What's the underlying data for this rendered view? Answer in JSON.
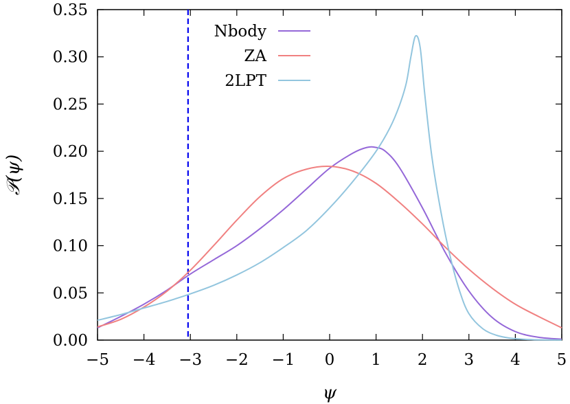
{
  "chart_data": {
    "type": "line",
    "xlabel": "ψ",
    "ylabel": "𝒫(ψ)",
    "xlim": [
      -5,
      5
    ],
    "ylim": [
      0,
      0.35
    ],
    "x_ticks": [
      -5,
      -4,
      -3,
      -2,
      -1,
      0,
      1,
      2,
      3,
      4,
      5
    ],
    "x_tick_labels": [
      "−5",
      "−4",
      "−3",
      "−2",
      "−1",
      "0",
      "1",
      "2",
      "3",
      "4",
      "5"
    ],
    "y_ticks": [
      0,
      0.05,
      0.1,
      0.15,
      0.2,
      0.25,
      0.3,
      0.35
    ],
    "y_tick_labels": [
      "0.00",
      "0.05",
      "0.10",
      "0.15",
      "0.20",
      "0.25",
      "0.30",
      "0.35"
    ],
    "grid": false,
    "legend_position": "top-center",
    "series": [
      {
        "name": "Nbody",
        "color": "#9467d8",
        "x": [
          -5,
          -4.5,
          -4,
          -3.5,
          -3,
          -2.5,
          -2,
          -1.5,
          -1,
          -0.5,
          0,
          0.5,
          0.8,
          1,
          1.2,
          1.5,
          2,
          2.5,
          3,
          3.5,
          4,
          4.5,
          5
        ],
        "y": [
          0.013,
          0.025,
          0.038,
          0.053,
          0.07,
          0.085,
          0.1,
          0.118,
          0.138,
          0.16,
          0.182,
          0.198,
          0.204,
          0.204,
          0.2,
          0.183,
          0.14,
          0.092,
          0.052,
          0.024,
          0.009,
          0.003,
          0.001
        ]
      },
      {
        "name": "ZA",
        "color": "#f08080",
        "x": [
          -5,
          -4.5,
          -4,
          -3.5,
          -3,
          -2.5,
          -2,
          -1.5,
          -1,
          -0.5,
          0,
          0.5,
          1,
          1.5,
          2,
          2.5,
          3,
          3.5,
          4,
          4.5,
          5
        ],
        "y": [
          0.014,
          0.022,
          0.035,
          0.052,
          0.074,
          0.1,
          0.127,
          0.152,
          0.171,
          0.181,
          0.184,
          0.179,
          0.166,
          0.146,
          0.123,
          0.098,
          0.075,
          0.055,
          0.038,
          0.025,
          0.013
        ]
      },
      {
        "name": "2LPT",
        "color": "#92c5de",
        "x": [
          -5,
          -4.5,
          -4,
          -3.5,
          -3,
          -2.5,
          -2,
          -1.5,
          -1,
          -0.5,
          0,
          0.5,
          1,
          1.3,
          1.5,
          1.65,
          1.75,
          1.85,
          1.95,
          2.05,
          2.2,
          2.4,
          2.6,
          2.8,
          3,
          3.3,
          3.6,
          3.9,
          4.2,
          4.5,
          5
        ],
        "y": [
          0.021,
          0.027,
          0.034,
          0.041,
          0.049,
          0.058,
          0.069,
          0.082,
          0.098,
          0.116,
          0.14,
          0.168,
          0.2,
          0.225,
          0.248,
          0.272,
          0.3,
          0.322,
          0.31,
          0.26,
          0.195,
          0.135,
          0.088,
          0.052,
          0.028,
          0.012,
          0.005,
          0.002,
          0.0008,
          0.0003,
          0.0001
        ]
      }
    ],
    "annotations": [
      {
        "type": "vline",
        "x": -3.05,
        "color": "#0000ee",
        "style": "dashed"
      }
    ]
  }
}
